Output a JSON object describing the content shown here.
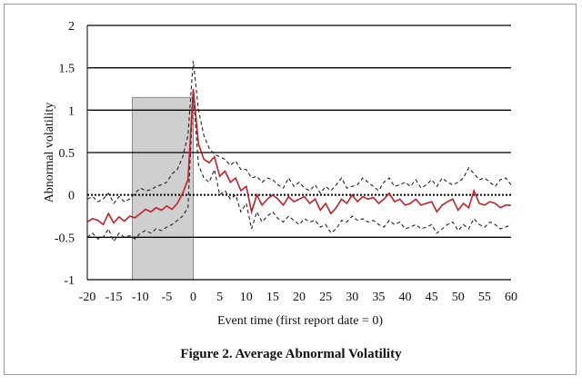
{
  "caption": "Figure 2. Average Abnormal Volatility",
  "chart_data": {
    "type": "line",
    "xlabel": "Event time (first report date = 0)",
    "ylabel": "Abnormal volatility",
    "xlim": [
      -20,
      60
    ],
    "ylim": [
      -1,
      2
    ],
    "x_ticks": [
      -20,
      -15,
      -10,
      -5,
      0,
      5,
      10,
      15,
      20,
      25,
      30,
      35,
      40,
      45,
      50,
      55,
      60
    ],
    "y_ticks": [
      2,
      1.5,
      1,
      0.5,
      0,
      -0.5,
      -1
    ],
    "y_tick_labels": [
      "2",
      "1.5",
      "1",
      "0.5",
      "0",
      "-0.5",
      "-1"
    ],
    "gridlines": "horizontal",
    "zero_line_style": "dotted",
    "shaded_region": {
      "x_start": -11.5,
      "x_end": 0,
      "y_top": 1.15,
      "y_bottom": -1,
      "color": "#cfcfcf"
    },
    "colors": {
      "mean": "#c0202a",
      "bands": "#222222",
      "shaded": "#cfcfcf"
    },
    "x": [
      -20,
      -19,
      -18,
      -17,
      -16,
      -15,
      -14,
      -13,
      -12,
      -11,
      -10,
      -9,
      -8,
      -7,
      -6,
      -5,
      -4,
      -3,
      -2,
      -1,
      0,
      1,
      2,
      3,
      4,
      5,
      6,
      7,
      8,
      9,
      10,
      11,
      12,
      13,
      14,
      15,
      16,
      17,
      18,
      19,
      20,
      21,
      22,
      23,
      24,
      25,
      26,
      27,
      28,
      29,
      30,
      31,
      32,
      33,
      34,
      35,
      36,
      37,
      38,
      39,
      40,
      41,
      42,
      43,
      44,
      45,
      46,
      47,
      48,
      49,
      50,
      51,
      52,
      53,
      54,
      55,
      56,
      57,
      58,
      59,
      60
    ],
    "series": [
      {
        "role": "mean",
        "style": "solid",
        "values": [
          -0.32,
          -0.28,
          -0.3,
          -0.35,
          -0.22,
          -0.33,
          -0.26,
          -0.31,
          -0.25,
          -0.27,
          -0.22,
          -0.17,
          -0.2,
          -0.15,
          -0.18,
          -0.13,
          -0.17,
          -0.1,
          0.02,
          0.18,
          1.25,
          0.6,
          0.42,
          0.38,
          0.45,
          0.22,
          0.28,
          0.15,
          0.2,
          0.05,
          0.1,
          -0.2,
          0.0,
          -0.12,
          -0.05,
          0.0,
          -0.05,
          -0.12,
          -0.02,
          -0.08,
          -0.05,
          -0.02,
          -0.1,
          -0.05,
          -0.18,
          -0.1,
          -0.22,
          -0.15,
          -0.05,
          -0.1,
          0.0,
          -0.08,
          -0.02,
          -0.05,
          -0.03,
          -0.1,
          -0.05,
          0.02,
          -0.08,
          -0.05,
          -0.12,
          -0.1,
          -0.05,
          -0.12,
          -0.1,
          -0.08,
          -0.2,
          -0.12,
          -0.08,
          -0.05,
          -0.18,
          -0.1,
          -0.15,
          0.05,
          -0.1,
          -0.12,
          -0.08,
          -0.1,
          -0.15,
          -0.12,
          -0.12
        ]
      },
      {
        "role": "upper band",
        "style": "dashed",
        "values": [
          -0.05,
          -0.02,
          -0.08,
          -0.05,
          0.02,
          -0.1,
          -0.02,
          -0.08,
          -0.05,
          0.02,
          0.08,
          0.05,
          0.06,
          0.1,
          0.12,
          0.15,
          0.25,
          0.3,
          0.45,
          0.7,
          1.58,
          1.0,
          0.7,
          0.55,
          0.48,
          0.45,
          0.42,
          0.35,
          0.4,
          0.3,
          0.3,
          0.2,
          0.22,
          0.15,
          0.2,
          0.18,
          0.12,
          0.08,
          0.2,
          0.1,
          0.15,
          0.08,
          0.05,
          0.12,
          0.02,
          0.1,
          0.05,
          0.12,
          0.2,
          0.08,
          0.1,
          0.12,
          0.2,
          0.15,
          0.1,
          0.05,
          0.15,
          0.2,
          0.1,
          0.12,
          0.15,
          0.1,
          0.18,
          0.08,
          0.12,
          0.18,
          0.1,
          0.2,
          0.15,
          0.12,
          0.15,
          0.2,
          0.32,
          0.25,
          0.18,
          0.2,
          0.15,
          0.1,
          0.18,
          0.2,
          0.12
        ]
      },
      {
        "role": "lower band",
        "style": "dashed",
        "values": [
          -0.5,
          -0.45,
          -0.52,
          -0.5,
          -0.4,
          -0.55,
          -0.45,
          -0.5,
          -0.48,
          -0.52,
          -0.45,
          -0.42,
          -0.45,
          -0.4,
          -0.42,
          -0.38,
          -0.35,
          -0.3,
          -0.25,
          -0.15,
          1.2,
          0.35,
          0.2,
          0.15,
          0.3,
          0.0,
          0.05,
          -0.05,
          0.0,
          -0.2,
          -0.1,
          -0.4,
          -0.2,
          -0.32,
          -0.25,
          -0.2,
          -0.28,
          -0.32,
          -0.25,
          -0.3,
          -0.35,
          -0.28,
          -0.32,
          -0.3,
          -0.38,
          -0.35,
          -0.45,
          -0.4,
          -0.3,
          -0.32,
          -0.25,
          -0.3,
          -0.28,
          -0.32,
          -0.3,
          -0.35,
          -0.38,
          -0.3,
          -0.35,
          -0.32,
          -0.4,
          -0.38,
          -0.35,
          -0.4,
          -0.38,
          -0.35,
          -0.45,
          -0.4,
          -0.35,
          -0.32,
          -0.42,
          -0.35,
          -0.4,
          -0.28,
          -0.35,
          -0.38,
          -0.32,
          -0.35,
          -0.4,
          -0.38,
          -0.35
        ]
      }
    ]
  }
}
